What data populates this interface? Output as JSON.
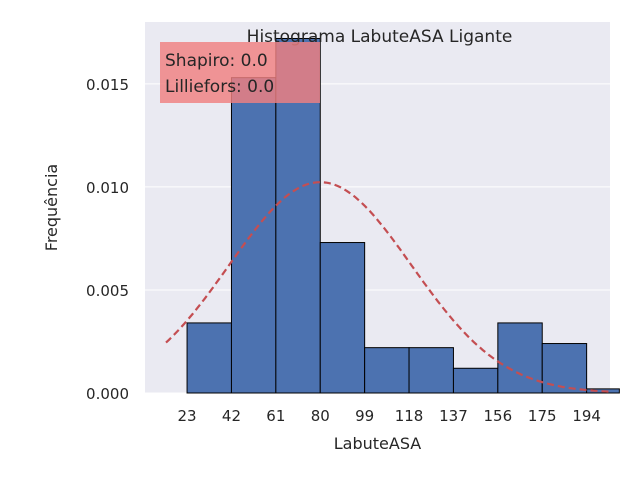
{
  "chart_data": {
    "type": "bar",
    "title": "Histograma LabuteASA Ligante",
    "xlabel": "LabuteASA",
    "ylabel": "Frequência",
    "xlim": [
      5,
      204
    ],
    "ylim": [
      0,
      0.018
    ],
    "xticks": [
      23,
      42,
      61,
      80,
      99,
      118,
      137,
      156,
      175,
      194
    ],
    "xtick_labels": [
      "23",
      "42",
      "61",
      "80",
      "99",
      "118",
      "137",
      "156",
      "175",
      "194"
    ],
    "yticks": [
      0,
      0.005,
      0.01,
      0.015
    ],
    "ytick_labels": [
      "0.000",
      "0.005",
      "0.010",
      "0.015"
    ],
    "grid": true,
    "bins": [
      {
        "x0": 23,
        "x1": 42,
        "height": 0.0034
      },
      {
        "x0": 42,
        "x1": 61,
        "height": 0.0153
      },
      {
        "x0": 61,
        "x1": 80,
        "height": 0.0172
      },
      {
        "x0": 80,
        "x1": 99,
        "height": 0.0073
      },
      {
        "x0": 99,
        "x1": 118,
        "height": 0.0022
      },
      {
        "x0": 118,
        "x1": 137,
        "height": 0.0022
      },
      {
        "x0": 137,
        "x1": 156,
        "height": 0.0012
      },
      {
        "x0": 156,
        "x1": 175,
        "height": 0.0034
      },
      {
        "x0": 175,
        "x1": 194,
        "height": 0.0024
      },
      {
        "x0": 194,
        "x1": 208,
        "height": 0.0002
      }
    ],
    "normal_curve": {
      "mean": 80,
      "std": 39,
      "x_range": [
        14,
        204
      ]
    },
    "annotation": [
      "Shapiro: 0.0",
      "Lilliefors: 0.0"
    ],
    "colors": {
      "bar": "#4c72b0",
      "bar_edge": "#000000",
      "curve": "#c44e52",
      "annotation_box": "#f08080",
      "plot_background": "#eaeaf2",
      "grid": "#ffffff"
    }
  }
}
